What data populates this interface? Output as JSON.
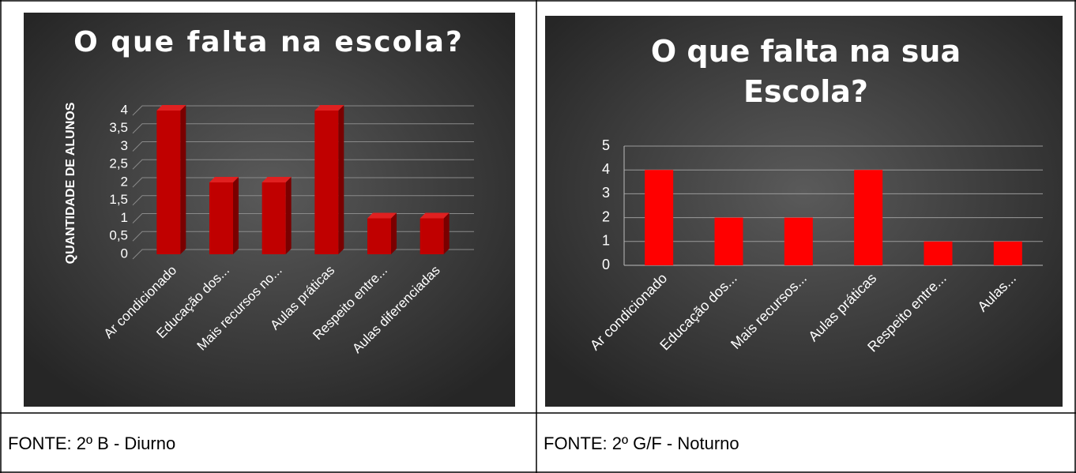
{
  "chart_data": [
    {
      "type": "bar3d",
      "title": "O que falta na escola?",
      "ylabel": "QUANTIDADE  DE ALUNOS",
      "categories": [
        "Ar condicionado",
        "Educação dos...",
        "Mais recursos no...",
        "Aulas práticas",
        "Respeito entre...",
        "Aulas diferenciadas"
      ],
      "values": [
        4,
        2,
        2,
        4,
        1,
        1
      ],
      "color": "#c00000",
      "ylim": [
        0,
        4
      ],
      "yticks": [
        0,
        {
          "value": 0.5,
          "label": "0,5"
        },
        1,
        {
          "value": 1.5,
          "label": "1,5"
        },
        2,
        {
          "value": 2.5,
          "label": "2,5"
        },
        3,
        {
          "value": 3.5,
          "label": "3,5"
        },
        4
      ],
      "grid": true
    },
    {
      "type": "bar",
      "title": "O que falta na sua Escola?",
      "categories": [
        "Ar condicionado",
        "Educação dos...",
        "Mais recursos...",
        "Aulas práticas",
        "Respeito entre...",
        "Aulas..."
      ],
      "values": [
        4,
        2,
        2,
        4,
        1,
        1
      ],
      "color": "#ff0000",
      "ylim": [
        0,
        5
      ],
      "yticks": [
        0,
        1,
        2,
        3,
        4,
        5
      ],
      "grid": true
    }
  ],
  "table": {
    "captions": [
      "FONTE: 2º B - Diurno",
      "FONTE: 2º G/F - Noturno"
    ]
  }
}
